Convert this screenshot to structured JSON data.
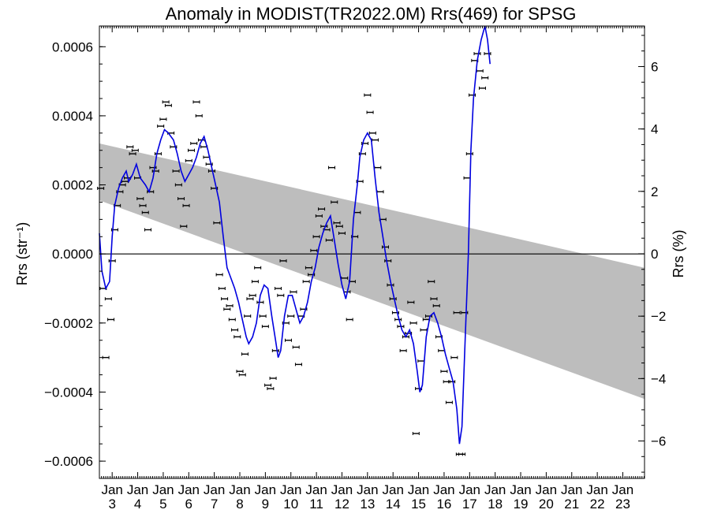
{
  "chart_data": {
    "type": "line",
    "title": "Anomaly in MODIST(TR2022.0M) Rrs(469) for SPSG",
    "ylabel_left": "Rrs (str⁻¹)",
    "ylabel_right": "Rrs (%)",
    "xlabel": "",
    "x_unit": "year (20xx)",
    "xlim": [
      2002.5,
      2023.85
    ],
    "ylim_left": [
      -0.00065,
      0.00066
    ],
    "ylim_right": [
      -7.2,
      7.3
    ],
    "left_ticks": [
      -0.0006,
      -0.0004,
      -0.0002,
      0.0,
      0.0002,
      0.0004,
      0.0006
    ],
    "left_tick_labels": [
      "−0.0006",
      "−0.0004",
      "−0.0002",
      "0.0000",
      "0.0002",
      "0.0004",
      "0.0006"
    ],
    "right_ticks": [
      -6,
      -4,
      -2,
      0,
      2,
      4,
      6
    ],
    "right_tick_labels": [
      "−6",
      "−4",
      "−2",
      "0",
      "2",
      "4",
      "6"
    ],
    "x_ticks": [
      {
        "x": 2003,
        "month": "Jan",
        "year": "3"
      },
      {
        "x": 2004,
        "month": "Jan",
        "year": "4"
      },
      {
        "x": 2005,
        "month": "Jan",
        "year": "5"
      },
      {
        "x": 2006,
        "month": "Jan",
        "year": "6"
      },
      {
        "x": 2007,
        "month": "Jan",
        "year": "7"
      },
      {
        "x": 2008,
        "month": "Jan",
        "year": "8"
      },
      {
        "x": 2009,
        "month": "Jan",
        "year": "9"
      },
      {
        "x": 2010,
        "month": "Jan",
        "year": "10"
      },
      {
        "x": 2011,
        "month": "Jan",
        "year": "11"
      },
      {
        "x": 2012,
        "month": "Jan",
        "year": "12"
      },
      {
        "x": 2013,
        "month": "Jan",
        "year": "13"
      },
      {
        "x": 2014,
        "month": "Jan",
        "year": "14"
      },
      {
        "x": 2015,
        "month": "Jan",
        "year": "15"
      },
      {
        "x": 2016,
        "month": "Jan",
        "year": "16"
      },
      {
        "x": 2017,
        "month": "Jan",
        "year": "17"
      },
      {
        "x": 2018,
        "month": "Jan",
        "year": "18"
      },
      {
        "x": 2019,
        "month": "Jan",
        "year": "19"
      },
      {
        "x": 2020,
        "month": "Jan",
        "year": "20"
      },
      {
        "x": 2021,
        "month": "Jan",
        "year": "21"
      },
      {
        "x": 2022,
        "month": "Jan",
        "year": "22"
      },
      {
        "x": 2023,
        "month": "Jan",
        "year": "23"
      }
    ],
    "trend_band": {
      "x": [
        2002.5,
        2023.85
      ],
      "upper": [
        0.00032,
        -4e-05
      ],
      "lower": [
        0.000155,
        -0.00042
      ],
      "color": "#bdbdbd"
    },
    "zero_line": 0.0,
    "smoothed_series": {
      "name": "",
      "color": "#0000e0",
      "points": [
        [
          2002.5,
          6e-05
        ],
        [
          2002.6,
          -5e-05
        ],
        [
          2002.75,
          -0.0001
        ],
        [
          2002.9,
          -8e-05
        ],
        [
          2003.0,
          5e-05
        ],
        [
          2003.1,
          0.00014
        ],
        [
          2003.25,
          0.00019
        ],
        [
          2003.4,
          0.00022
        ],
        [
          2003.55,
          0.00024
        ],
        [
          2003.65,
          0.00021
        ],
        [
          2003.8,
          0.00023
        ],
        [
          2003.95,
          0.00026
        ],
        [
          2004.1,
          0.00022
        ],
        [
          2004.3,
          0.0002
        ],
        [
          2004.45,
          0.00018
        ],
        [
          2004.6,
          0.00022
        ],
        [
          2004.75,
          0.00029
        ],
        [
          2004.9,
          0.00033
        ],
        [
          2005.05,
          0.00036
        ],
        [
          2005.2,
          0.00035
        ],
        [
          2005.4,
          0.00033
        ],
        [
          2005.55,
          0.00029
        ],
        [
          2005.7,
          0.00024
        ],
        [
          2005.85,
          0.00021
        ],
        [
          2006.0,
          0.00023
        ],
        [
          2006.15,
          0.00025
        ],
        [
          2006.3,
          0.00028
        ],
        [
          2006.45,
          0.00032
        ],
        [
          2006.6,
          0.00034
        ],
        [
          2006.75,
          0.0003
        ],
        [
          2006.9,
          0.00025
        ],
        [
          2007.05,
          0.0002
        ],
        [
          2007.2,
          0.00015
        ],
        [
          2007.35,
          5e-05
        ],
        [
          2007.5,
          -4e-05
        ],
        [
          2007.65,
          -7e-05
        ],
        [
          2007.8,
          -0.0001
        ],
        [
          2007.95,
          -0.00014
        ],
        [
          2008.1,
          -0.00019
        ],
        [
          2008.25,
          -0.00024
        ],
        [
          2008.35,
          -0.00026
        ],
        [
          2008.5,
          -0.00024
        ],
        [
          2008.65,
          -0.0002
        ],
        [
          2008.8,
          -0.00012
        ],
        [
          2008.95,
          -9e-05
        ],
        [
          2009.1,
          -0.0001
        ],
        [
          2009.25,
          -0.00018
        ],
        [
          2009.4,
          -0.00025
        ],
        [
          2009.5,
          -0.0003
        ],
        [
          2009.6,
          -0.00028
        ],
        [
          2009.75,
          -0.00018
        ],
        [
          2009.9,
          -0.00012
        ],
        [
          2010.05,
          -0.00012
        ],
        [
          2010.2,
          -0.00016
        ],
        [
          2010.35,
          -0.0002
        ],
        [
          2010.5,
          -0.00018
        ],
        [
          2010.65,
          -0.00014
        ],
        [
          2010.8,
          -8e-05
        ],
        [
          2010.95,
          -4e-05
        ],
        [
          2011.1,
          2e-05
        ],
        [
          2011.25,
          6e-05
        ],
        [
          2011.4,
          9e-05
        ],
        [
          2011.55,
          0.00011
        ],
        [
          2011.7,
          4e-05
        ],
        [
          2011.85,
          -3e-05
        ],
        [
          2012.0,
          -9e-05
        ],
        [
          2012.15,
          -0.00013
        ],
        [
          2012.3,
          -8e-05
        ],
        [
          2012.45,
          0.0001
        ],
        [
          2012.6,
          0.0002
        ],
        [
          2012.7,
          0.00028
        ],
        [
          2012.85,
          0.00033
        ],
        [
          2013.0,
          0.00035
        ],
        [
          2013.15,
          0.00033
        ],
        [
          2013.3,
          0.00022
        ],
        [
          2013.45,
          0.00012
        ],
        [
          2013.6,
          5e-05
        ],
        [
          2013.75,
          -2e-05
        ],
        [
          2013.9,
          -8e-05
        ],
        [
          2014.05,
          -0.00013
        ],
        [
          2014.2,
          -0.00018
        ],
        [
          2014.35,
          -0.00022
        ],
        [
          2014.5,
          -0.00024
        ],
        [
          2014.65,
          -0.00022
        ],
        [
          2014.8,
          -0.00026
        ],
        [
          2014.95,
          -0.00034
        ],
        [
          2015.05,
          -0.0004
        ],
        [
          2015.15,
          -0.00038
        ],
        [
          2015.3,
          -0.00024
        ],
        [
          2015.45,
          -0.00018
        ],
        [
          2015.6,
          -0.00017
        ],
        [
          2015.75,
          -0.0002
        ],
        [
          2015.9,
          -0.00024
        ],
        [
          2016.05,
          -0.00029
        ],
        [
          2016.2,
          -0.00033
        ],
        [
          2016.35,
          -0.00037
        ],
        [
          2016.5,
          -0.00045
        ],
        [
          2016.6,
          -0.00055
        ],
        [
          2016.7,
          -0.0005
        ],
        [
          2016.8,
          -0.0003
        ],
        [
          2016.95,
          0.0
        ],
        [
          2017.05,
          0.0003
        ],
        [
          2017.15,
          0.00045
        ],
        [
          2017.3,
          0.00056
        ],
        [
          2017.45,
          0.00062
        ],
        [
          2017.6,
          0.00066
        ],
        [
          2017.7,
          0.00062
        ],
        [
          2017.8,
          0.00055
        ]
      ]
    },
    "observations": [
      [
        2002.55,
        0.00019
      ],
      [
        2002.65,
        -0.0001
      ],
      [
        2002.75,
        -0.0003
      ],
      [
        2002.85,
        -0.00013
      ],
      [
        2002.95,
        -0.00019
      ],
      [
        2003.0,
        -2e-05
      ],
      [
        2003.1,
        7e-05
      ],
      [
        2003.2,
        0.00014
      ],
      [
        2003.3,
        0.00018
      ],
      [
        2003.4,
        0.0002
      ],
      [
        2003.5,
        0.00021
      ],
      [
        2003.6,
        0.00022
      ],
      [
        2003.7,
        0.00031
      ],
      [
        2003.8,
        0.00029
      ],
      [
        2003.9,
        0.0003
      ],
      [
        2004.0,
        0.00022
      ],
      [
        2004.1,
        0.00016
      ],
      [
        2004.2,
        0.00014
      ],
      [
        2004.3,
        0.00012
      ],
      [
        2004.4,
        7e-05
      ],
      [
        2004.5,
        0.00018
      ],
      [
        2004.6,
        0.00025
      ],
      [
        2004.7,
        0.00024
      ],
      [
        2004.8,
        0.00029
      ],
      [
        2004.9,
        0.00037
      ],
      [
        2005.0,
        0.00039
      ],
      [
        2005.1,
        0.00044
      ],
      [
        2005.2,
        0.00043
      ],
      [
        2005.3,
        0.00035
      ],
      [
        2005.4,
        0.00031
      ],
      [
        2005.5,
        0.00024
      ],
      [
        2005.6,
        0.0002
      ],
      [
        2005.7,
        0.00016
      ],
      [
        2005.8,
        8e-05
      ],
      [
        2005.9,
        0.00014
      ],
      [
        2006.0,
        0.00027
      ],
      [
        2006.1,
        0.0003
      ],
      [
        2006.2,
        0.00032
      ],
      [
        2006.3,
        0.00044
      ],
      [
        2006.4,
        0.0004
      ],
      [
        2006.5,
        0.00033
      ],
      [
        2006.6,
        0.00031
      ],
      [
        2006.7,
        0.00028
      ],
      [
        2006.8,
        0.00026
      ],
      [
        2006.9,
        0.00024
      ],
      [
        2007.0,
        0.00019
      ],
      [
        2007.1,
        9e-05
      ],
      [
        2007.2,
        -6e-05
      ],
      [
        2007.3,
        -0.0001
      ],
      [
        2007.4,
        -0.00013
      ],
      [
        2007.5,
        -0.00016
      ],
      [
        2007.6,
        -0.00015
      ],
      [
        2007.7,
        -0.00019
      ],
      [
        2007.8,
        -0.00022
      ],
      [
        2007.9,
        -0.00024
      ],
      [
        2008.0,
        -0.00034
      ],
      [
        2008.1,
        -0.00035
      ],
      [
        2008.2,
        -0.00029
      ],
      [
        2008.3,
        -0.00018
      ],
      [
        2008.4,
        -0.00013
      ],
      [
        2008.5,
        -0.00012
      ],
      [
        2008.6,
        -8e-05
      ],
      [
        2008.7,
        -4e-05
      ],
      [
        2008.8,
        -0.00014
      ],
      [
        2008.9,
        -0.00018
      ],
      [
        2009.0,
        -0.00021
      ],
      [
        2009.1,
        -0.00038
      ],
      [
        2009.2,
        -0.00039
      ],
      [
        2009.3,
        -0.00036
      ],
      [
        2009.4,
        -0.00028
      ],
      [
        2009.5,
        -0.0001
      ],
      [
        2009.6,
        -0.00012
      ],
      [
        2009.7,
        -2e-05
      ],
      [
        2009.8,
        -0.0002
      ],
      [
        2009.9,
        -0.00025
      ],
      [
        2010.0,
        -0.00018
      ],
      [
        2010.1,
        -0.00011
      ],
      [
        2010.2,
        -0.00027
      ],
      [
        2010.3,
        -0.00032
      ],
      [
        2010.4,
        -0.00018
      ],
      [
        2010.5,
        -0.00016
      ],
      [
        2010.6,
        -8e-05
      ],
      [
        2010.7,
        -4e-05
      ],
      [
        2010.8,
        -6e-05
      ],
      [
        2010.9,
        1e-05
      ],
      [
        2011.0,
        5e-05
      ],
      [
        2011.1,
        0.00011
      ],
      [
        2011.2,
        0.00013
      ],
      [
        2011.3,
        8e-05
      ],
      [
        2011.4,
        7e-05
      ],
      [
        2011.5,
        4e-05
      ],
      [
        2011.6,
        0.00025
      ],
      [
        2011.7,
        0.00015
      ],
      [
        2011.8,
        9e-05
      ],
      [
        2011.9,
        8e-05
      ],
      [
        2012.0,
        6e-05
      ],
      [
        2012.1,
        -7e-05
      ],
      [
        2012.2,
        -0.00011
      ],
      [
        2012.3,
        -0.00019
      ],
      [
        2012.4,
        -8e-05
      ],
      [
        2012.5,
        5e-05
      ],
      [
        2012.6,
        0.00012
      ],
      [
        2012.7,
        0.00021
      ],
      [
        2012.8,
        0.00029
      ],
      [
        2012.9,
        0.00032
      ],
      [
        2013.0,
        0.00046
      ],
      [
        2013.1,
        0.00041
      ],
      [
        2013.2,
        0.00035
      ],
      [
        2013.3,
        0.00033
      ],
      [
        2013.4,
        0.00025
      ],
      [
        2013.5,
        0.00018
      ],
      [
        2013.6,
        0.0001
      ],
      [
        2013.7,
        2e-05
      ],
      [
        2013.8,
        -2e-05
      ],
      [
        2013.9,
        -9e-05
      ],
      [
        2014.0,
        -0.00013
      ],
      [
        2014.1,
        -0.00017
      ],
      [
        2014.2,
        -0.00019
      ],
      [
        2014.3,
        -0.00021
      ],
      [
        2014.4,
        -0.00028
      ],
      [
        2014.5,
        -0.00024
      ],
      [
        2014.6,
        -0.00023
      ],
      [
        2014.7,
        -0.00014
      ],
      [
        2014.8,
        -0.0002
      ],
      [
        2014.9,
        -0.00052
      ],
      [
        2015.0,
        -0.00039
      ],
      [
        2015.1,
        -0.00031
      ],
      [
        2015.2,
        -0.00022
      ],
      [
        2015.3,
        -0.00019
      ],
      [
        2015.4,
        -0.00018
      ],
      [
        2015.5,
        -8e-05
      ],
      [
        2015.6,
        -0.00013
      ],
      [
        2015.7,
        -0.00015
      ],
      [
        2015.8,
        -0.00024
      ],
      [
        2015.9,
        -0.00028
      ],
      [
        2016.0,
        -0.00034
      ],
      [
        2016.1,
        -0.00037
      ],
      [
        2016.2,
        -0.00043
      ],
      [
        2016.3,
        -0.00037
      ],
      [
        2016.4,
        -0.0003
      ],
      [
        2016.5,
        -0.00017
      ],
      [
        2016.6,
        -0.00058
      ],
      [
        2016.7,
        -0.00058
      ],
      [
        2016.8,
        -0.00017
      ],
      [
        2016.9,
        0.00022
      ],
      [
        2017.0,
        0.00029
      ],
      [
        2017.1,
        0.00046
      ],
      [
        2017.2,
        0.00056
      ],
      [
        2017.3,
        0.00058
      ],
      [
        2017.4,
        0.00053
      ],
      [
        2017.5,
        0.00048
      ],
      [
        2017.6,
        0.00051
      ],
      [
        2017.7,
        0.00058
      ]
    ]
  }
}
